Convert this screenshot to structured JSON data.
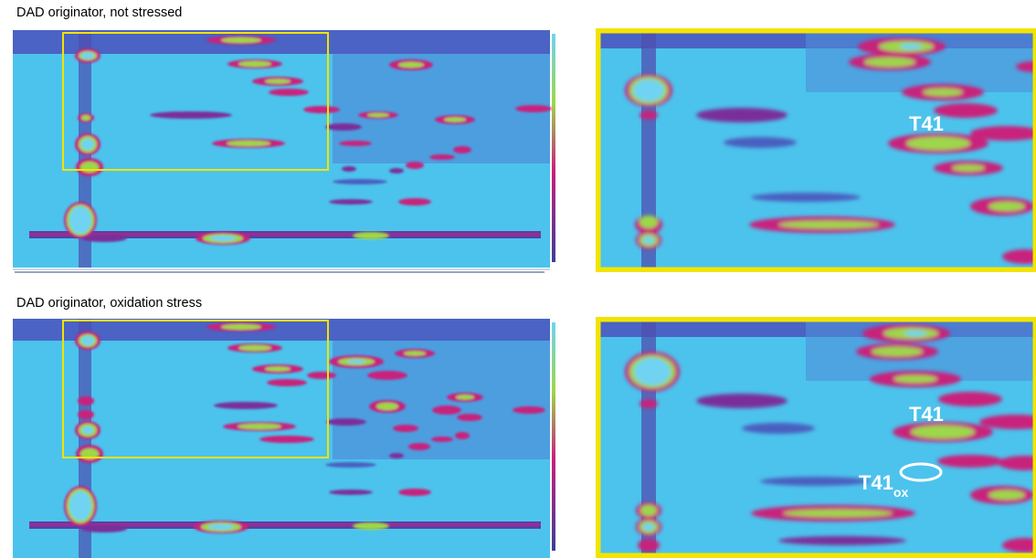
{
  "panels": [
    {
      "title": "DAD originator, not stressed",
      "zoom_labels": [
        "T41"
      ]
    },
    {
      "title": "DAD originator, oxidation stress",
      "zoom_labels": [
        "T41",
        "T41",
        "ox"
      ]
    }
  ],
  "colors": {
    "background": "#4cc3ec",
    "highlight_box": "#f2e400",
    "low_intensity": "#4a5fc0",
    "mid_intensity": "#c8207c",
    "high_intensity": "#9cd84a"
  }
}
